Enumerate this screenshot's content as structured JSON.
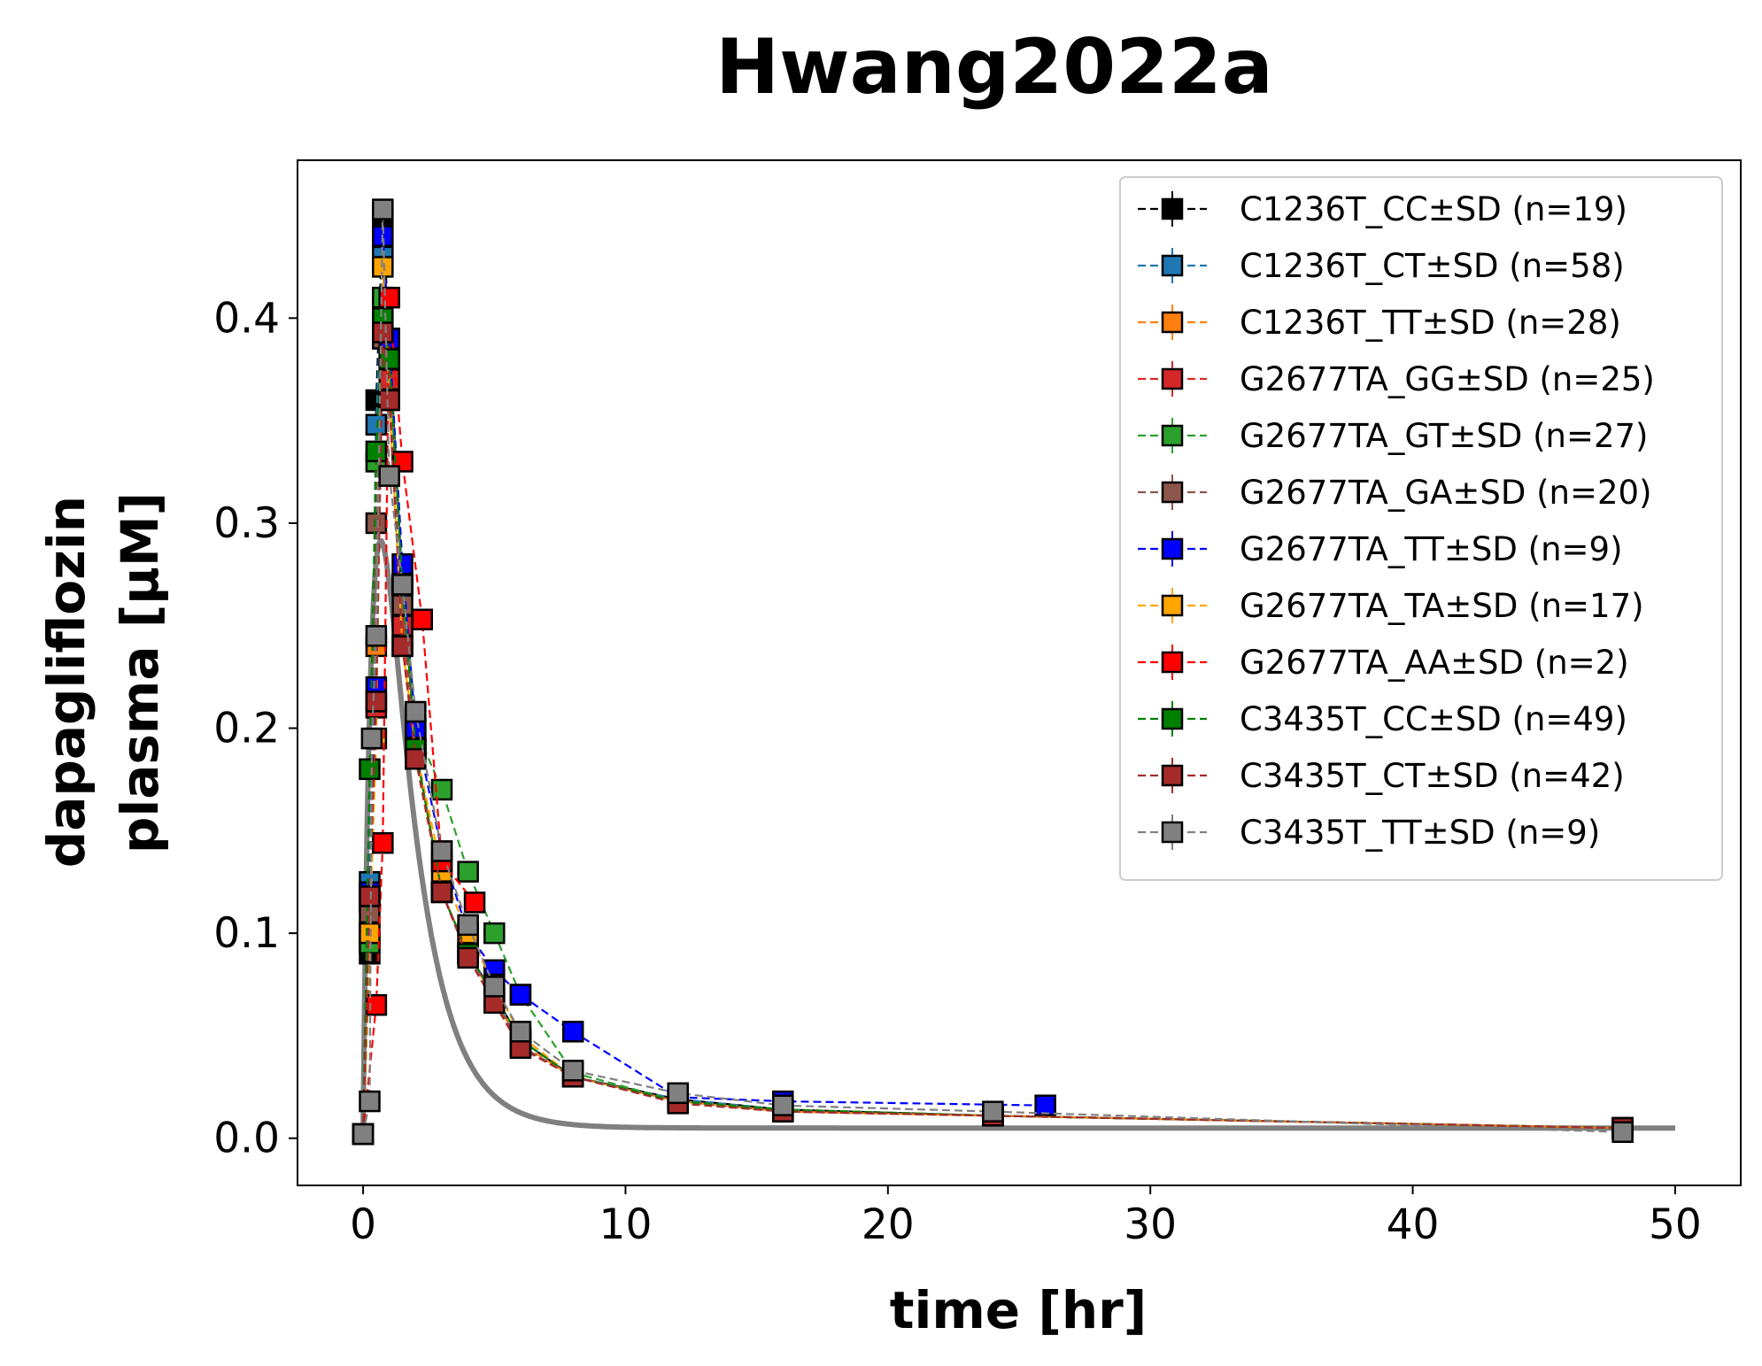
{
  "chart_data": {
    "type": "line",
    "title": "Hwang2022a",
    "xlabel": "time [hr]",
    "ylabel_lines": [
      "dapagliflozin",
      "plasma [μM]"
    ],
    "xlim": [
      -2.5,
      52.5
    ],
    "ylim": [
      -0.023,
      0.477
    ],
    "xticks": [
      0,
      10,
      20,
      30,
      40,
      50
    ],
    "yticks": [
      0.0,
      0.1,
      0.2,
      0.3,
      0.4
    ],
    "xtick_labels": [
      "0",
      "10",
      "20",
      "30",
      "40",
      "50"
    ],
    "ytick_labels": [
      "0.0",
      "0.1",
      "0.2",
      "0.3",
      "0.4"
    ],
    "legend_position": "top-right",
    "series": [
      {
        "name": "C1236T_CC±SD (n=19)",
        "color": "#000000",
        "x": [
          0,
          0.25,
          0.5,
          0.75,
          1,
          1.5,
          2,
          3,
          4,
          5,
          6,
          8,
          12,
          16,
          24,
          48
        ],
        "y": [
          0.002,
          0.09,
          0.36,
          0.45,
          0.39,
          0.27,
          0.19,
          0.12,
          0.09,
          0.07,
          0.048,
          0.03,
          0.019,
          0.014,
          0.011,
          0.005
        ]
      },
      {
        "name": "C1236T_CT±SD (n=58)",
        "color": "#1f77b4",
        "x": [
          0,
          0.25,
          0.5,
          0.75,
          1,
          1.5,
          2,
          3,
          4,
          5,
          6,
          8,
          12,
          16,
          24,
          48
        ],
        "y": [
          0.002,
          0.125,
          0.348,
          0.43,
          0.38,
          0.27,
          0.19,
          0.12,
          0.09,
          0.07,
          0.048,
          0.03,
          0.019,
          0.014,
          0.011,
          0.005
        ]
      },
      {
        "name": "C1236T_TT±SD (n=28)",
        "color": "#ff7f0e",
        "x": [
          0,
          0.25,
          0.5,
          0.75,
          1,
          1.5,
          2,
          3,
          4,
          5,
          6,
          8,
          12,
          16,
          24,
          48
        ],
        "y": [
          0.002,
          0.1,
          0.24,
          0.41,
          0.39,
          0.27,
          0.19,
          0.12,
          0.09,
          0.068,
          0.046,
          0.03,
          0.018,
          0.013,
          0.011,
          0.005
        ]
      },
      {
        "name": "G2677TA_GG±SD (n=25)",
        "color": "#d62728",
        "x": [
          0,
          0.25,
          0.5,
          0.75,
          1,
          1.5,
          2,
          3,
          4,
          5,
          6,
          8,
          12,
          16,
          24,
          48
        ],
        "y": [
          0.002,
          0.115,
          0.21,
          0.39,
          0.37,
          0.25,
          0.19,
          0.12,
          0.09,
          0.068,
          0.045,
          0.03,
          0.018,
          0.013,
          0.011,
          0.005
        ]
      },
      {
        "name": "G2677TA_GT±SD (n=27)",
        "color": "#2ca02c",
        "x": [
          0,
          0.25,
          0.5,
          0.75,
          1,
          1.5,
          2,
          3,
          4,
          5,
          6,
          8,
          12,
          16,
          24,
          48
        ],
        "y": [
          0.002,
          0.095,
          0.33,
          0.41,
          0.38,
          0.27,
          0.2,
          0.17,
          0.13,
          0.1,
          0.07,
          0.032,
          0.018,
          0.014,
          0.011,
          0.005
        ]
      },
      {
        "name": "G2677TA_GA±SD (n=20)",
        "color": "#8c564b",
        "x": [
          0,
          0.25,
          0.5,
          0.75,
          1,
          1.5,
          2,
          3,
          4,
          5,
          6,
          8,
          12,
          16,
          24,
          48
        ],
        "y": [
          0.002,
          0.11,
          0.3,
          0.39,
          0.36,
          0.26,
          0.19,
          0.12,
          0.09,
          0.068,
          0.045,
          0.03,
          0.018,
          0.013,
          0.011,
          0.005
        ]
      },
      {
        "name": "G2677TA_TT±SD (n=9)",
        "color": "#0000ff",
        "x": [
          0,
          0.25,
          0.5,
          0.75,
          1,
          1.5,
          2,
          3,
          4,
          5,
          6,
          8,
          12,
          16,
          26
        ],
        "y": [
          0.002,
          0.12,
          0.22,
          0.44,
          0.39,
          0.28,
          0.2,
          0.14,
          0.1,
          0.082,
          0.07,
          0.052,
          0.02,
          0.018,
          0.016
        ]
      },
      {
        "name": "G2677TA_TA±SD (n=17)",
        "color": "#ffa500",
        "x": [
          0,
          0.25,
          0.5,
          0.75,
          1,
          1.5,
          2,
          3,
          4,
          5,
          6,
          8,
          12,
          16,
          24,
          48
        ],
        "y": [
          0.002,
          0.1,
          0.195,
          0.425,
          0.36,
          0.24,
          0.19,
          0.13,
          0.1,
          0.075,
          0.05,
          0.03,
          0.018,
          0.014,
          0.011,
          0.005
        ]
      },
      {
        "name": "G2677TA_AA±SD (n=2)",
        "color": "#ff0000",
        "x": [
          0,
          0.5,
          0.75,
          1,
          1.5,
          2.25,
          3,
          4.25
        ],
        "y": [
          0.002,
          0.065,
          0.144,
          0.41,
          0.33,
          0.253,
          0.135,
          0.115
        ]
      },
      {
        "name": "C3435T_CC±SD (n=49)",
        "color": "#008000",
        "x": [
          0,
          0.25,
          0.5,
          0.75,
          1,
          1.5,
          2,
          3,
          4,
          5,
          6,
          8,
          12,
          16,
          24,
          48
        ],
        "y": [
          0.002,
          0.18,
          0.335,
          0.4,
          0.38,
          0.27,
          0.19,
          0.12,
          0.09,
          0.07,
          0.048,
          0.03,
          0.018,
          0.014,
          0.011,
          0.005
        ]
      },
      {
        "name": "C3435T_CT±SD (n=42)",
        "color": "#a52a2a",
        "x": [
          0,
          0.25,
          0.5,
          0.75,
          1,
          1.5,
          2,
          3,
          4,
          5,
          6,
          8,
          12,
          16,
          24,
          48
        ],
        "y": [
          0.002,
          0.118,
          0.213,
          0.393,
          0.36,
          0.24,
          0.185,
          0.12,
          0.088,
          0.066,
          0.044,
          0.03,
          0.017,
          0.013,
          0.011,
          0.005
        ]
      },
      {
        "name": "C3435T_TT±SD (n=9)",
        "color": "#808080",
        "x": [
          0,
          0.25,
          0.33,
          0.5,
          0.75,
          1,
          1.5,
          2,
          3,
          4,
          5,
          6,
          8,
          12,
          16,
          24,
          48
        ],
        "y": [
          0.002,
          0.018,
          0.195,
          0.245,
          0.453,
          0.323,
          0.27,
          0.208,
          0.14,
          0.104,
          0.074,
          0.052,
          0.033,
          0.022,
          0.016,
          0.013,
          0.003
        ]
      }
    ]
  }
}
